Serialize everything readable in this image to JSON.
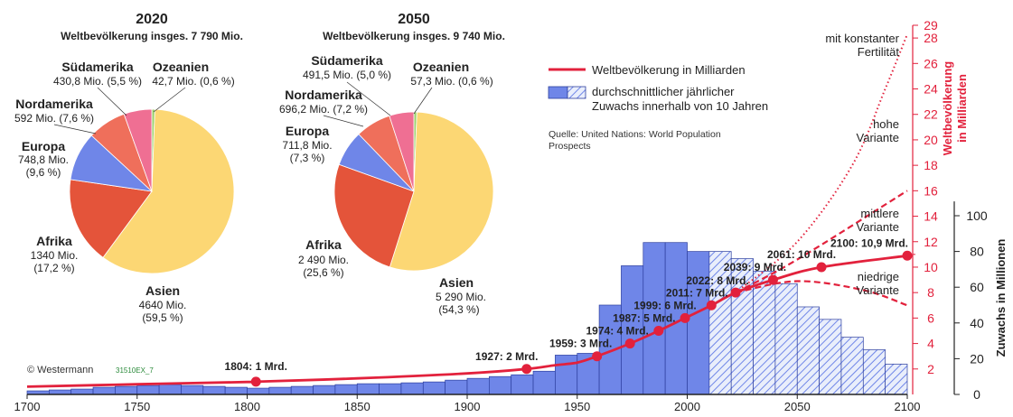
{
  "colors": {
    "red": "#e2213c",
    "bar_fill": "#6f86e8",
    "bar_stroke": "#2d3f9e",
    "asia": "#fcd774",
    "africa": "#e4543a",
    "europe": "#6f86e8",
    "northamerica": "#ef6f5b",
    "southamerica": "#ef6f93",
    "oceania": "#9bd16a"
  },
  "pie_2020": {
    "year": "2020",
    "subtitle": "Weltbevölkerung insges. 7 790 Mio.",
    "slices": [
      {
        "key": "asia",
        "name": "Asien",
        "line1": "4640 Mio.",
        "line2": "(59,5 %)",
        "pct": 59.5
      },
      {
        "key": "africa",
        "name": "Afrika",
        "line1": "1340 Mio.",
        "line2": "(17,2 %)",
        "pct": 17.2
      },
      {
        "key": "europe",
        "name": "Europa",
        "line1": "748,8 Mio.",
        "line2": "(9,6 %)",
        "pct": 9.6
      },
      {
        "key": "northamerica",
        "name": "Nordamerika",
        "line1": "592 Mio. (7,6 %)",
        "line2": "",
        "pct": 7.6
      },
      {
        "key": "southamerica",
        "name": "Südamerika",
        "line1": "430,8 Mio. (5,5 %)",
        "line2": "",
        "pct": 5.5
      },
      {
        "key": "oceania",
        "name": "Ozeanien",
        "line1": "42,7 Mio. (0,6 %)",
        "line2": "",
        "pct": 0.6
      }
    ]
  },
  "pie_2050": {
    "year": "2050",
    "subtitle": "Weltbevölkerung insges. 9 740 Mio.",
    "slices": [
      {
        "key": "asia",
        "name": "Asien",
        "line1": "5 290 Mio.",
        "line2": "(54,3 %)",
        "pct": 54.3
      },
      {
        "key": "africa",
        "name": "Afrika",
        "line1": "2 490 Mio.",
        "line2": "(25,6 %)",
        "pct": 25.6
      },
      {
        "key": "europe",
        "name": "Europa",
        "line1": "711,8 Mio.",
        "line2": "(7,3 %)",
        "pct": 7.3
      },
      {
        "key": "northamerica",
        "name": "Nordamerika",
        "line1": "696,2 Mio. (7,2 %)",
        "line2": "",
        "pct": 7.2
      },
      {
        "key": "southamerica",
        "name": "Südamerika",
        "line1": "491,5 Mio. (5,0 %)",
        "line2": "",
        "pct": 5.0
      },
      {
        "key": "oceania",
        "name": "Ozeanien",
        "line1": "57,3 Mio. (0,6 %)",
        "line2": "",
        "pct": 0.6
      }
    ]
  },
  "legend": {
    "line_label": "Weltbevölkerung in Milliarden",
    "bar_label_1": "durchschnittlicher jährlicher",
    "bar_label_2": "Zuwachs innerhalb von 10 Jahren",
    "source_1": "Quelle: United Nations: World Population",
    "source_2": "Prospects"
  },
  "credit": "© Westermann",
  "credit_code": "31510EX_7",
  "variants": {
    "constant_1": "mit konstanter",
    "constant_2": "Fertilität",
    "high_1": "hohe",
    "high_2": "Variante",
    "medium_1": "mittlere",
    "medium_2": "Variante",
    "low_1": "niedrige",
    "low_2": "Variante"
  },
  "right_axis_label_1": "Weltbevölkerung",
  "right_axis_label_2": "in Milliarden",
  "far_axis_label": "Zuwachs in Millionen",
  "chart_data": {
    "type": "bar",
    "x_ticks": [
      1700,
      1750,
      1800,
      1850,
      1900,
      1950,
      2000,
      2050,
      2100
    ],
    "xlim": [
      1700,
      2100
    ],
    "y_billions_ticks": [
      2,
      4,
      6,
      8,
      10,
      11,
      12,
      14,
      16,
      18,
      20,
      22,
      24,
      26,
      28,
      29
    ],
    "ylim_billions": [
      0,
      29
    ],
    "y_growth_ticks": [
      0,
      20,
      40,
      60,
      80,
      100
    ],
    "ylim_growth": [
      0,
      108
    ],
    "growth_bars": {
      "decade_start": [
        1700,
        1710,
        1720,
        1730,
        1740,
        1750,
        1760,
        1770,
        1780,
        1790,
        1800,
        1810,
        1820,
        1830,
        1840,
        1850,
        1860,
        1870,
        1880,
        1890,
        1900,
        1910,
        1920,
        1930,
        1940,
        1950,
        1960,
        1970,
        1980,
        1990,
        2000,
        2010,
        2020,
        2030,
        2040,
        2050,
        2060,
        2070,
        2080,
        2090
      ],
      "values": [
        2,
        2.5,
        3,
        4,
        4.5,
        5,
        5.5,
        5,
        4.5,
        4,
        3.5,
        4,
        4.5,
        5,
        5.5,
        6,
        6,
        6.5,
        7,
        8,
        9,
        10,
        11,
        13,
        22,
        23,
        50,
        72,
        85,
        85,
        80,
        80,
        76,
        69,
        62,
        49,
        42,
        32,
        25,
        17
      ],
      "projected_from": 2010
    },
    "population_line": {
      "x": [
        1700,
        1750,
        1800,
        1804,
        1850,
        1900,
        1927,
        1940,
        1950,
        1959,
        1974,
        1987,
        1999,
        2011,
        2022,
        2039,
        2061,
        2100
      ],
      "y": [
        0.61,
        0.8,
        0.98,
        1.0,
        1.26,
        1.65,
        2.0,
        2.3,
        2.5,
        3.0,
        4.0,
        5.0,
        6.0,
        7.0,
        8.0,
        9.0,
        10.0,
        10.9
      ]
    },
    "high_variant": {
      "x": [
        2022,
        2050,
        2100
      ],
      "y": [
        8.0,
        10.6,
        16.0
      ]
    },
    "low_variant": {
      "x": [
        2022,
        2050,
        2080,
        2100
      ],
      "y": [
        8.0,
        8.9,
        8.2,
        7.0
      ]
    },
    "constant_fertility": {
      "x": [
        2022,
        2050,
        2075,
        2090,
        2100
      ],
      "y": [
        8.0,
        12.0,
        18.0,
        24.0,
        28.3
      ]
    },
    "milestones": [
      {
        "x": 1804,
        "y": 1,
        "label": "1804: 1 Mrd."
      },
      {
        "x": 1927,
        "y": 2,
        "label": "1927: 2 Mrd."
      },
      {
        "x": 1959,
        "y": 3,
        "label": "1959: 3 Mrd."
      },
      {
        "x": 1974,
        "y": 4,
        "label": "1974: 4 Mrd."
      },
      {
        "x": 1987,
        "y": 5,
        "label": "1987: 5 Mrd."
      },
      {
        "x": 1999,
        "y": 6,
        "label": "1999: 6 Mrd."
      },
      {
        "x": 2011,
        "y": 7,
        "label": "2011: 7 Mrd."
      },
      {
        "x": 2022,
        "y": 8,
        "label": "2022: 8 Mrd."
      },
      {
        "x": 2039,
        "y": 9,
        "label": "2039: 9 Mrd."
      },
      {
        "x": 2061,
        "y": 10,
        "label": "2061: 10 Mrd."
      },
      {
        "x": 2100,
        "y": 10.9,
        "label": "2100: 10,9 Mrd."
      }
    ]
  }
}
